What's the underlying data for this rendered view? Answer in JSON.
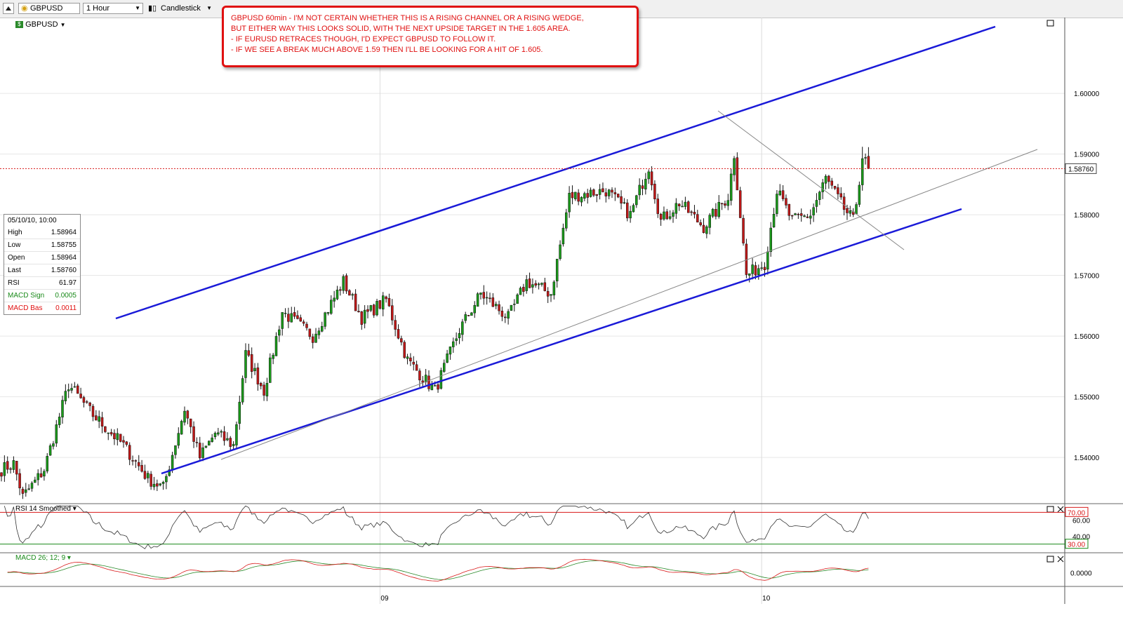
{
  "toolbar": {
    "symbol": "GBPUSD",
    "interval": "1 Hour",
    "chart_style": "Candlestick"
  },
  "symbol_label": "GBPUSD",
  "annotation": {
    "lines": [
      "GBPUSD 60min - I'M NOT CERTAIN WHETHER THIS IS A RISING CHANNEL OR A RISING WEDGE,",
      "BUT EITHER WAY THIS LOOKS SOLID, WITH THE NEXT UPSIDE TARGET IN THE 1.605 AREA.",
      "- IF EURUSD RETRACES THOUGH, I'D EXPECT GBPUSD TO FOLLOW IT.",
      "- IF WE SEE A BREAK MUCH ABOVE 1.59 THEN I'LL BE LOOKING FOR A HIT OF 1.605."
    ]
  },
  "data_window": {
    "datetime": "05/10/10, 10:00",
    "rows": [
      {
        "label": "High",
        "value": "1.58964",
        "color": "#000000"
      },
      {
        "label": "Low",
        "value": "1.58755",
        "color": "#000000"
      },
      {
        "label": "Open",
        "value": "1.58964",
        "color": "#000000"
      },
      {
        "label": "Last",
        "value": "1.58760",
        "color": "#000000"
      },
      {
        "label": "RSI",
        "value": "61.97",
        "color": "#000000"
      },
      {
        "label": "MACD Sign",
        "value": "0.0005",
        "color": "#1a8a1a"
      },
      {
        "label": "MACD Bas",
        "value": "0.0011",
        "color": "#e01010"
      }
    ]
  },
  "colors": {
    "bull": "#1a9a1a",
    "bear": "#c01818",
    "wick": "#111111",
    "channel": "#1a1ad8",
    "trend_thin": "#888888",
    "current_price_line": "#d81818",
    "rsi_line": "#333333",
    "rsi_upper": "#d81818",
    "rsi_lower": "#1a8a1a",
    "macd_line": "#d81818",
    "signal_line": "#2a8a2a"
  },
  "chart_data": {
    "type": "candlestick",
    "symbol": "GBPUSD",
    "interval": "1 Hour",
    "current_price": "1.58760",
    "current_price_value": 1.5876,
    "ylim": [
      1.5325,
      1.6125
    ],
    "y_ticks": [
      "1.60000",
      "1.59000",
      "1.58000",
      "1.57000",
      "1.56000",
      "1.55000",
      "1.54000"
    ],
    "y_tick_values": [
      1.6,
      1.59,
      1.58,
      1.57,
      1.56,
      1.55,
      1.54
    ],
    "x_labels": [
      {
        "label": "09",
        "index": 124
      },
      {
        "label": "10",
        "index": 249
      }
    ],
    "bar_count": 285,
    "path_anchors": [
      [
        0,
        1.538
      ],
      [
        4,
        1.539
      ],
      [
        7,
        1.5335
      ],
      [
        11,
        1.536
      ],
      [
        14,
        1.538
      ],
      [
        22,
        1.552
      ],
      [
        30,
        1.547
      ],
      [
        40,
        1.542
      ],
      [
        48,
        1.5365
      ],
      [
        53,
        1.535
      ],
      [
        60,
        1.548
      ],
      [
        65,
        1.54
      ],
      [
        70,
        1.544
      ],
      [
        76,
        1.542
      ],
      [
        80,
        1.557
      ],
      [
        86,
        1.551
      ],
      [
        92,
        1.564
      ],
      [
        102,
        1.56
      ],
      [
        112,
        1.569
      ],
      [
        118,
        1.563
      ],
      [
        126,
        1.566
      ],
      [
        133,
        1.556
      ],
      [
        142,
        1.551
      ],
      [
        150,
        1.561
      ],
      [
        157,
        1.567
      ],
      [
        166,
        1.563
      ],
      [
        172,
        1.569
      ],
      [
        180,
        1.567
      ],
      [
        186,
        1.583
      ],
      [
        198,
        1.584
      ],
      [
        206,
        1.58
      ],
      [
        212,
        1.588
      ],
      [
        216,
        1.579
      ],
      [
        222,
        1.582
      ],
      [
        230,
        1.578
      ],
      [
        238,
        1.583
      ],
      [
        240,
        1.59
      ],
      [
        244,
        1.57
      ],
      [
        250,
        1.572
      ],
      [
        254,
        1.584
      ],
      [
        259,
        1.579
      ],
      [
        265,
        1.58
      ],
      [
        270,
        1.586
      ],
      [
        276,
        1.581
      ],
      [
        279,
        1.579
      ],
      [
        280,
        1.582
      ],
      [
        282,
        1.5896
      ],
      [
        284,
        1.5876
      ]
    ],
    "indicators": {
      "rsi": {
        "label": "RSI 14 Smoothed",
        "period": 14,
        "levels": [
          "70.00",
          "30.00"
        ],
        "level_values": [
          70,
          30
        ],
        "ticks": [
          "60.00",
          "40.00"
        ],
        "tick_values": [
          60,
          40
        ],
        "range": [
          20,
          80
        ],
        "last": 61.97
      },
      "macd": {
        "label": "MACD 26; 12; 9",
        "slow": 26,
        "fast": 12,
        "signal": 9,
        "tick": "0.0000",
        "last_macd": 0.0011,
        "last_signal": 0.0005
      }
    }
  }
}
